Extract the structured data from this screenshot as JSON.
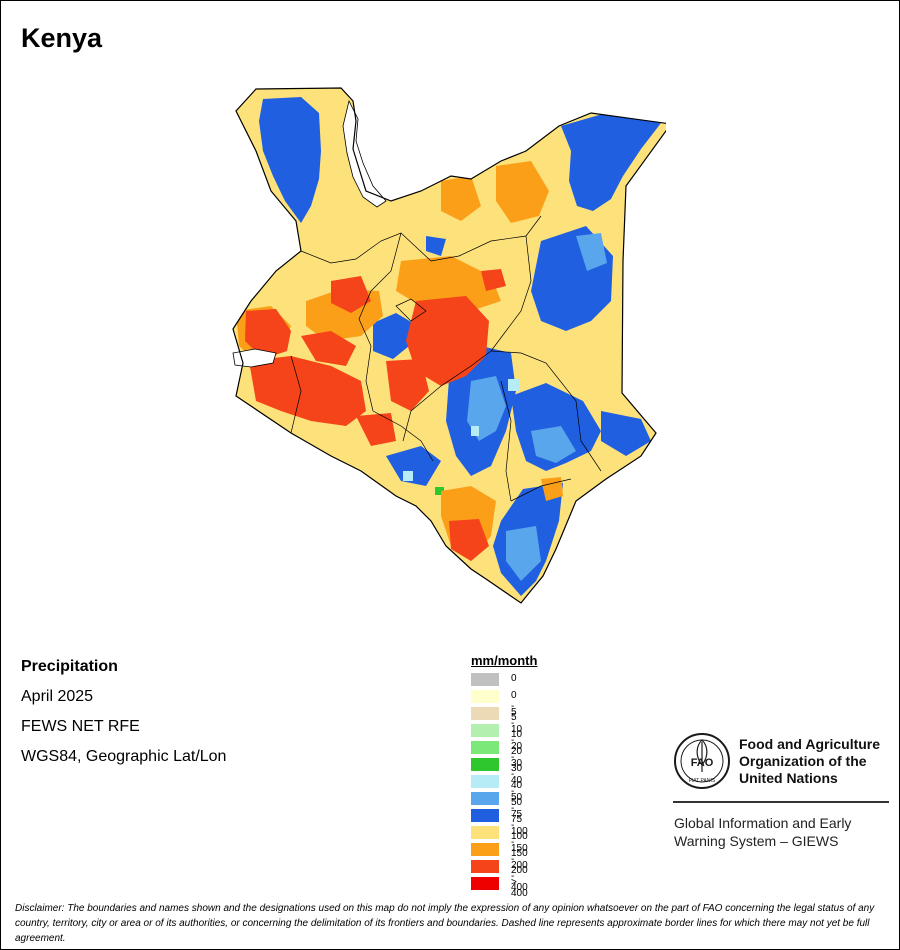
{
  "title": "Kenya",
  "info": {
    "variable": "Precipitation",
    "period": "April 2025",
    "source": "FEWS NET RFE",
    "projection": "WGS84, Geographic Lat/Lon"
  },
  "legend": {
    "title": "mm/month",
    "items": [
      {
        "label": "0",
        "color": "#c0c0c0"
      },
      {
        "label": "0 - 5",
        "color": "#ffffcc"
      },
      {
        "label": "5 - 10",
        "color": "#ecd9b6"
      },
      {
        "label": "10 - 20",
        "color": "#b3f0b0"
      },
      {
        "label": "20 - 30",
        "color": "#7ce87a"
      },
      {
        "label": "30 - 40",
        "color": "#2ec82e"
      },
      {
        "label": "40 - 50",
        "color": "#b5ecf5"
      },
      {
        "label": "50 - 75",
        "color": "#5aa6ec"
      },
      {
        "label": "75 - 100",
        "color": "#1f5fe0"
      },
      {
        "label": "100 - 150",
        "color": "#fde27c"
      },
      {
        "label": "150 - 200",
        "color": "#fb9f18"
      },
      {
        "label": "200 - 400",
        "color": "#f5431a"
      },
      {
        "label": "> 400",
        "color": "#ee0000"
      }
    ]
  },
  "organization": {
    "line1": "Food and Agriculture",
    "line2": "Organization of the",
    "line3": "United Nations",
    "logo_text": "FAO",
    "logo_motto": "FIAT PANIS"
  },
  "system": {
    "line1": "Global Information and Early",
    "line2": "Warning System – GIEWS"
  },
  "disclaimer": "Disclaimer: The boundaries and names shown and the designations used on this map do not imply the expression of any opinion whatsoever on the part of FAO concerning the legal status of any country, territory, city or area or of its authorities, or concerning the delimitation of its frontiers and boundaries. Dashed line represents approximate border lines for which there may not yet be full agreement."
}
